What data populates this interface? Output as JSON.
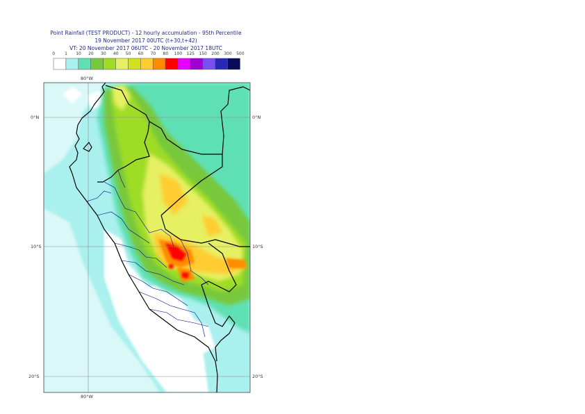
{
  "header": {
    "line1": "Point Rainfall (TEST PRODUCT) - 12 hourly accumulation - 95th Percentile",
    "line2": "19 November 2017 00UTC (t+30,t+42)",
    "line3": "VT: 20 November 2017 06UTC - 20 November 2017 18UTC"
  },
  "legend": {
    "thresholds": [
      "0",
      "1",
      "10",
      "20",
      "30",
      "40",
      "50",
      "60",
      "70",
      "80",
      "100",
      "125",
      "150",
      "200",
      "300",
      "500"
    ],
    "colors": [
      "#ffffff",
      "#aaf0ee",
      "#5ee0b4",
      "#78c83c",
      "#9edc28",
      "#e6f064",
      "#d2e01e",
      "#ffcc33",
      "#ff8c00",
      "#ff0000",
      "#e600ff",
      "#a000d2",
      "#7850f0",
      "#2828b4",
      "#0a0a5a"
    ]
  },
  "map": {
    "lat_labels": [
      "0°N",
      "10°S",
      "20°S"
    ],
    "lon_labels": [
      "80°W",
      "80°W"
    ],
    "colors": {
      "ocean": "#aaf0ee",
      "coast": "#000000",
      "admin": "#00008b",
      "grid": "#8c8c8c"
    }
  }
}
